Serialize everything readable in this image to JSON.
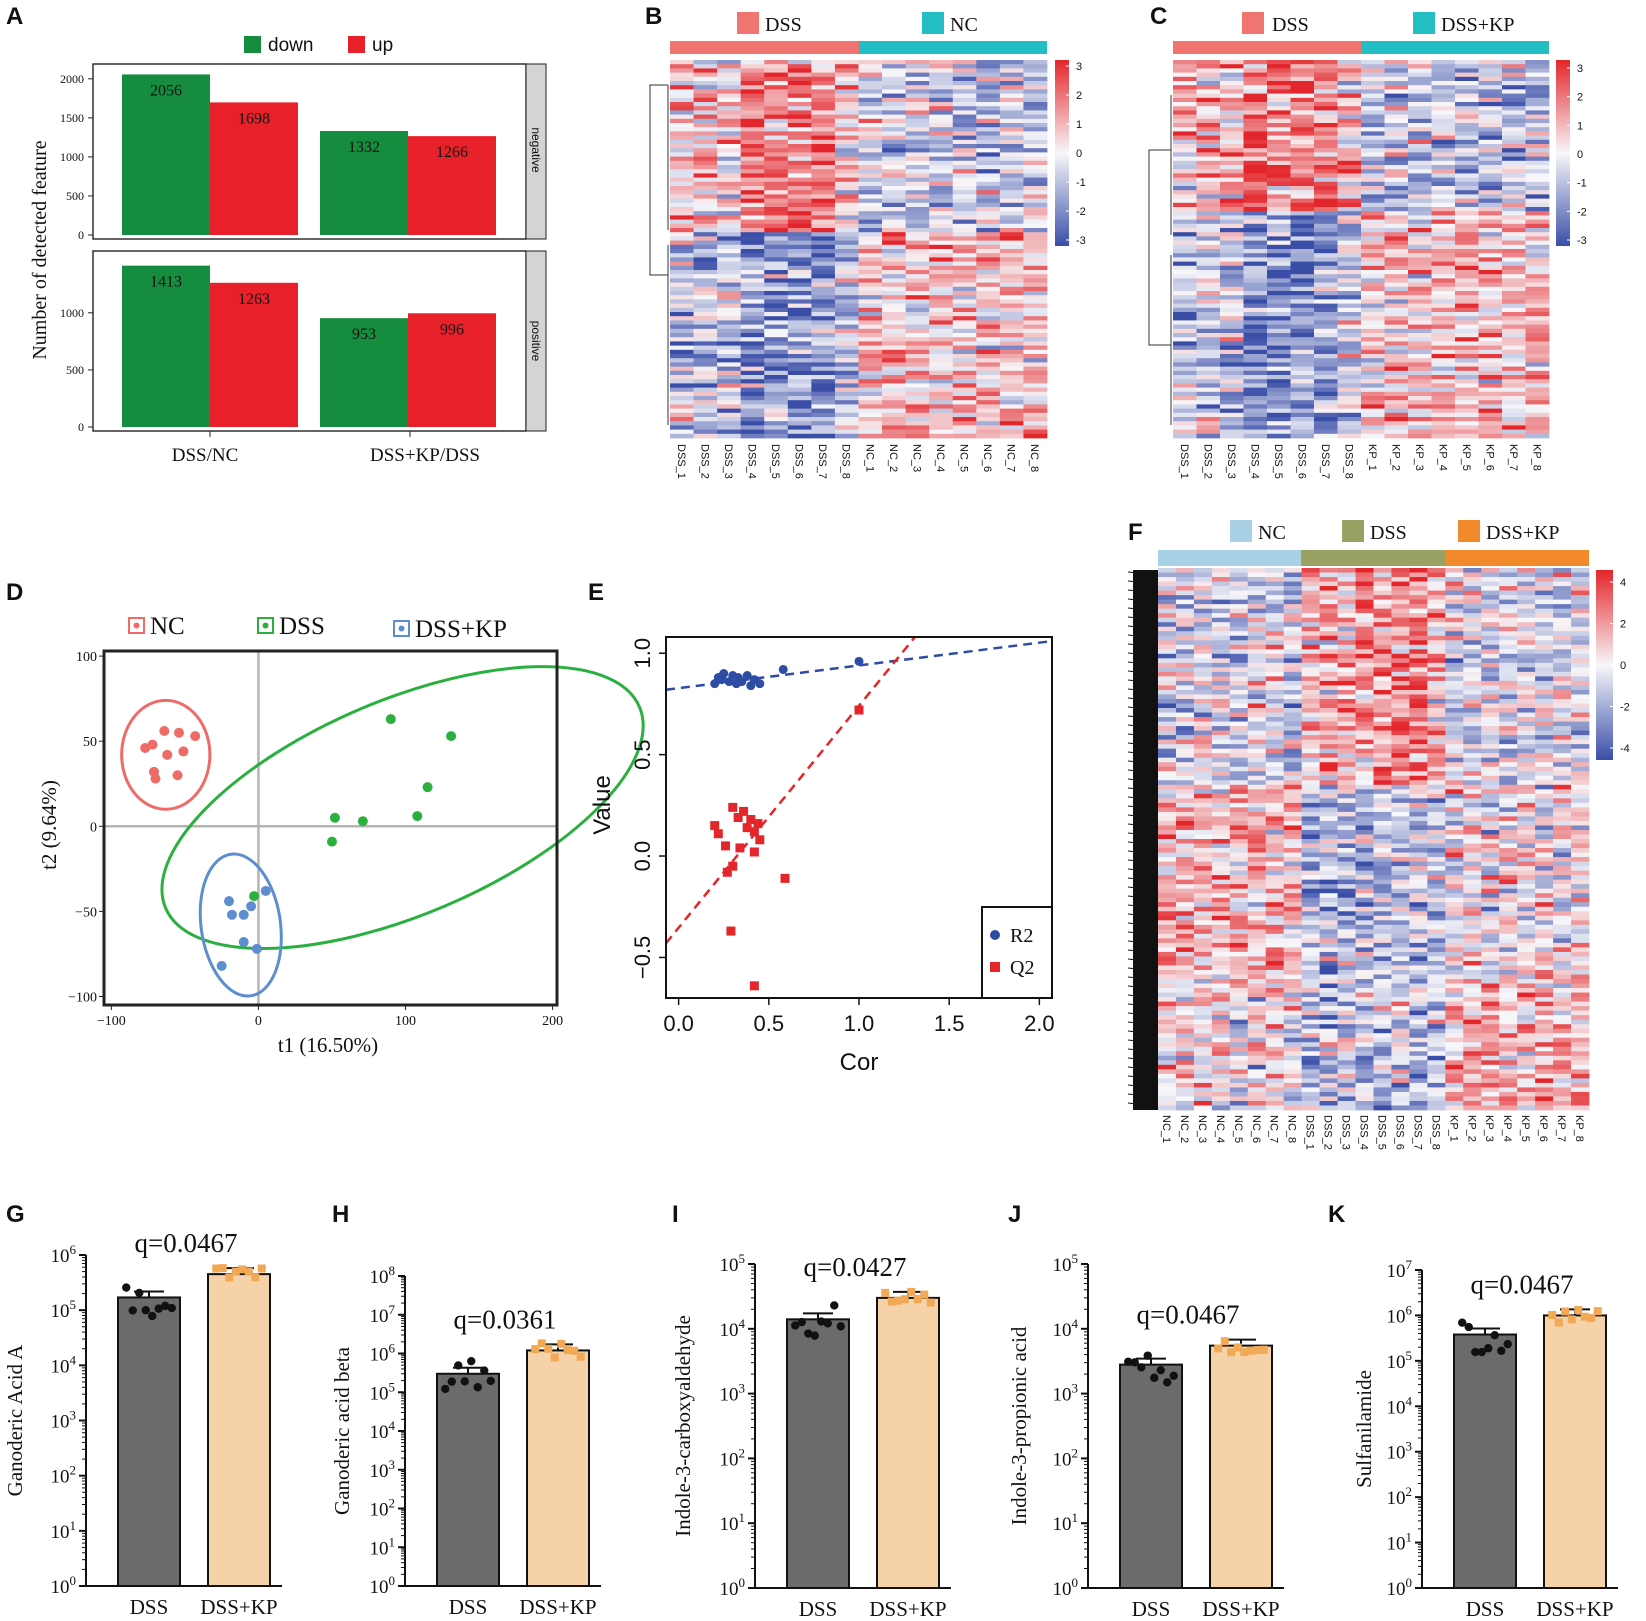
{
  "chart_data": [
    {
      "panel": "A",
      "type": "bar",
      "legend": [
        {
          "label": "down",
          "color": "#168C3F"
        },
        {
          "label": "up",
          "color": "#E8202A"
        }
      ],
      "categories": [
        "DSS/NC",
        "DSS+KP/DSS"
      ],
      "ylabel": "Number of detected feature",
      "facets": [
        {
          "strip": "negative",
          "ylim": [
            0,
            2100
          ],
          "ticks": [
            "0",
            "500",
            "1000",
            "1500",
            "2000"
          ],
          "tick_values": [
            0,
            500,
            1000,
            1500,
            2000
          ],
          "series": [
            {
              "name": "down",
              "values": [
                2056,
                1332
              ],
              "labels": [
                "2056",
                "1332"
              ]
            },
            {
              "name": "up",
              "values": [
                1698,
                1266
              ],
              "labels": [
                "1698",
                "1266"
              ]
            }
          ]
        },
        {
          "strip": "positive",
          "ylim": [
            0,
            1480
          ],
          "ticks": [
            "0",
            "500",
            "1000"
          ],
          "tick_values": [
            0,
            500,
            1000
          ],
          "series": [
            {
              "name": "down",
              "values": [
                1413,
                953
              ],
              "labels": [
                "1413",
                "953"
              ]
            },
            {
              "name": "up",
              "values": [
                1263,
                996
              ],
              "labels": [
                "1263",
                "996"
              ]
            }
          ]
        }
      ]
    },
    {
      "panel": "B",
      "type": "heatmap",
      "groups": [
        {
          "label": "DSS",
          "color": "#F07470"
        },
        {
          "label": "NC",
          "color": "#23BEC4"
        }
      ],
      "samples": [
        "DSS_1",
        "DSS_2",
        "DSS_3",
        "DSS_4",
        "DSS_5",
        "DSS_6",
        "DSS_7",
        "DSS_8",
        "NC_1",
        "NC_2",
        "NC_3",
        "NC_4",
        "NC_5",
        "NC_6",
        "NC_7",
        "NC_8"
      ],
      "colorbar_ticks": [
        "3",
        "2",
        "1",
        "0",
        "-1",
        "-2",
        "-3"
      ],
      "colorbar_range": [
        -3,
        3
      ]
    },
    {
      "panel": "C",
      "type": "heatmap",
      "groups": [
        {
          "label": "DSS",
          "color": "#F07470"
        },
        {
          "label": "DSS+KP",
          "color": "#23BEC4"
        }
      ],
      "samples": [
        "DSS_1",
        "DSS_2",
        "DSS_3",
        "DSS_4",
        "DSS_5",
        "DSS_6",
        "DSS_7",
        "DSS_8",
        "KP_1",
        "KP_2",
        "KP_3",
        "KP_4",
        "KP_5",
        "KP_6",
        "KP_7",
        "KP_8"
      ],
      "colorbar_ticks": [
        "3",
        "2",
        "1",
        "0",
        "-1",
        "-2",
        "-3"
      ],
      "colorbar_range": [
        -3,
        3
      ]
    },
    {
      "panel": "D",
      "type": "scatter",
      "xlabel": "t1 (16.50%)",
      "ylabel": "t2 (9.64%)",
      "xlim": [
        -105,
        203
      ],
      "ylim": [
        -105,
        103
      ],
      "xticks": [
        -100,
        0,
        100,
        200
      ],
      "xtick_labels": [
        "−100",
        "0",
        "100",
        "200"
      ],
      "yticks": [
        -100,
        -50,
        0,
        50,
        100
      ],
      "ytick_labels": [
        "−100",
        "−50",
        "0",
        "50",
        "100"
      ],
      "series": [
        {
          "name": "NC",
          "color": "#EE6B68",
          "points": [
            [
              -72,
              48
            ],
            [
              -64,
              56
            ],
            [
              -54,
              55
            ],
            [
              -77,
              46
            ],
            [
              -62,
              42
            ],
            [
              -51,
              44
            ],
            [
              -71,
              32
            ],
            [
              -70,
              28
            ],
            [
              -55,
              30
            ],
            [
              -43,
              53
            ]
          ]
        },
        {
          "name": "DSS",
          "color": "#2BB040",
          "points": [
            [
              90,
              63
            ],
            [
              131,
              53
            ],
            [
              115,
              23
            ],
            [
              52,
              5
            ],
            [
              71,
              3
            ],
            [
              108,
              6
            ],
            [
              50,
              -9
            ],
            [
              -3,
              -41
            ]
          ]
        },
        {
          "name": "DSS+KP",
          "color": "#5D8FD0",
          "points": [
            [
              -20,
              -44
            ],
            [
              -18,
              -52
            ],
            [
              -10,
              -52
            ],
            [
              -5,
              -47
            ],
            [
              5,
              -38
            ],
            [
              -10,
              -68
            ],
            [
              -1,
              -72
            ],
            [
              -25,
              -82
            ]
          ]
        }
      ],
      "ellipses": [
        {
          "name": "NC",
          "center": [
            -63,
            42
          ],
          "rx": 30,
          "ry": 32
        },
        {
          "name": "DSS",
          "center": [
            98,
            11
          ],
          "rx": 175,
          "ry": 63,
          "angle_deg": -23
        },
        {
          "name": "DSS+KP",
          "center": [
            -12,
            -58
          ],
          "rx": 27,
          "ry": 42,
          "angle_deg": -8
        }
      ]
    },
    {
      "panel": "E",
      "type": "scatter",
      "xlabel": "Cor",
      "ylabel": "Value",
      "xlim": [
        -0.07,
        2.07
      ],
      "ylim": [
        -0.7,
        1.08
      ],
      "xticks": [
        0.0,
        0.5,
        1.0,
        1.5,
        2.0
      ],
      "xtick_labels": [
        "0.0",
        "0.5",
        "1.0",
        "1.5",
        "2.0"
      ],
      "yticks": [
        -0.5,
        0.0,
        0.5,
        1.0
      ],
      "ytick_labels": [
        "−0.5",
        "0.0",
        "0.5",
        "1.0"
      ],
      "legend": [
        {
          "label": "R2",
          "color": "#2E4CA3"
        },
        {
          "label": "Q2",
          "color": "#E3262B"
        }
      ],
      "R2_points": [
        [
          0.2,
          0.85
        ],
        [
          0.22,
          0.88
        ],
        [
          0.24,
          0.87
        ],
        [
          0.25,
          0.9
        ],
        [
          0.28,
          0.86
        ],
        [
          0.3,
          0.89
        ],
        [
          0.32,
          0.85
        ],
        [
          0.33,
          0.88
        ],
        [
          0.35,
          0.86
        ],
        [
          0.38,
          0.89
        ],
        [
          0.4,
          0.84
        ],
        [
          0.42,
          0.87
        ],
        [
          0.45,
          0.85
        ],
        [
          0.58,
          0.92
        ],
        [
          1.0,
          0.96
        ]
      ],
      "Q2_points": [
        [
          0.2,
          0.15
        ],
        [
          0.22,
          0.11
        ],
        [
          0.26,
          0.05
        ],
        [
          0.3,
          0.24
        ],
        [
          0.33,
          0.19
        ],
        [
          0.36,
          0.22
        ],
        [
          0.38,
          0.14
        ],
        [
          0.4,
          0.18
        ],
        [
          0.42,
          0.12
        ],
        [
          0.44,
          0.16
        ],
        [
          0.45,
          0.08
        ],
        [
          0.42,
          0.02
        ],
        [
          0.34,
          0.04
        ],
        [
          0.3,
          -0.05
        ],
        [
          0.27,
          -0.08
        ],
        [
          0.59,
          -0.11
        ],
        [
          0.29,
          -0.37
        ],
        [
          0.42,
          -0.64
        ],
        [
          1.0,
          0.72
        ]
      ],
      "R2_fit": [
        [
          -0.07,
          0.82
        ],
        [
          2.07,
          1.06
        ]
      ],
      "Q2_fit": [
        [
          -0.07,
          -0.43
        ],
        [
          1.31,
          1.08
        ]
      ]
    },
    {
      "panel": "F",
      "type": "heatmap",
      "groups": [
        {
          "label": "NC",
          "color": "#A8D1E6"
        },
        {
          "label": "DSS",
          "color": "#9AA263"
        },
        {
          "label": "DSS+KP",
          "color": "#F28A2C"
        }
      ],
      "samples": [
        "NC_1",
        "NC_2",
        "NC_3",
        "NC_4",
        "NC_5",
        "NC_6",
        "NC_7",
        "NC_8",
        "DSS_1",
        "DSS_2",
        "DSS_3",
        "DSS_4",
        "DSS_5",
        "DSS_6",
        "DSS_7",
        "DSS_8",
        "KP_1",
        "KP_2",
        "KP_3",
        "KP_4",
        "KP_5",
        "KP_6",
        "KP_7",
        "KP_8"
      ],
      "colorbar_ticks": [
        "4",
        "2",
        "0",
        "-2",
        "-4"
      ],
      "colorbar_range": [
        -4,
        4
      ]
    },
    {
      "panel": "G",
      "type": "bar",
      "scale": "log10",
      "ylabel": "Ganoderic Acid A",
      "annotation": "q=0.0467",
      "categories": [
        "DSS",
        "DSS+KP"
      ],
      "values": [
        170000,
        450000
      ],
      "ylim_exp": [
        0,
        6
      ],
      "ytick_exps": [
        0,
        1,
        2,
        3,
        4,
        5,
        6
      ]
    },
    {
      "panel": "H",
      "type": "bar",
      "scale": "log10",
      "ylabel": "Ganoderic acid beta",
      "annotation": "q=0.0361",
      "categories": [
        "DSS",
        "DSS+KP"
      ],
      "values": [
        300000,
        1200000
      ],
      "ylim_exp": [
        0,
        8
      ],
      "ytick_exps": [
        0,
        1,
        2,
        3,
        4,
        5,
        6,
        7,
        8
      ]
    },
    {
      "panel": "I",
      "type": "bar",
      "scale": "log10",
      "ylabel": "Indole-3-carboxyaldehyde",
      "annotation": "q=0.0427",
      "categories": [
        "DSS",
        "DSS+KP"
      ],
      "values": [
        14000,
        30000
      ],
      "ylim_exp": [
        0,
        5
      ],
      "ytick_exps": [
        0,
        1,
        2,
        3,
        4,
        5
      ]
    },
    {
      "panel": "J",
      "type": "bar",
      "scale": "log10",
      "ylabel": "Indole-3-propionic acid",
      "annotation": "q=0.0467",
      "categories": [
        "DSS",
        "DSS+KP"
      ],
      "values": [
        2800,
        5500
      ],
      "ylim_exp": [
        0,
        5
      ],
      "ytick_exps": [
        0,
        1,
        2,
        3,
        4,
        5
      ]
    },
    {
      "panel": "K",
      "type": "bar",
      "scale": "log10",
      "ylabel": "Sulfanilamide",
      "annotation": "q=0.0467",
      "categories": [
        "DSS",
        "DSS+KP"
      ],
      "values": [
        380000,
        1000000
      ],
      "ylim_exp": [
        0,
        7
      ],
      "ytick_exps": [
        0,
        1,
        2,
        3,
        4,
        5,
        6,
        7
      ]
    }
  ],
  "colors": {
    "down": "#168C3F",
    "up": "#E8202A",
    "strip": "#D4D4D4",
    "heat_low": "#3A4EA8",
    "heat_mid": "#F7F7FA",
    "heat_high": "#E3262B",
    "bar_dss": "#6B6B6B",
    "bar_kp": "#F6D2A8",
    "dot_kp": "#F1A956"
  }
}
